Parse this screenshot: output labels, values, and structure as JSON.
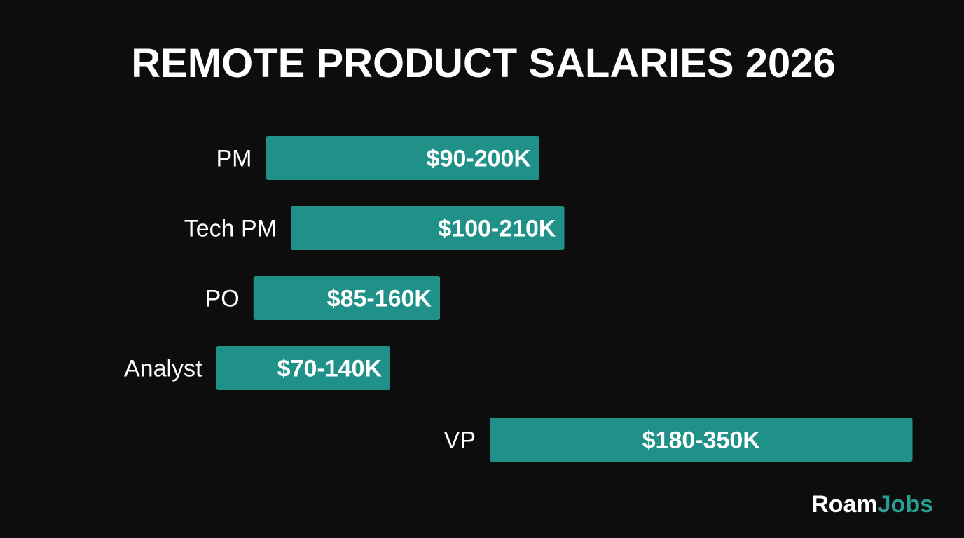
{
  "chart_data": {
    "type": "bar",
    "orientation": "horizontal",
    "title": "REMOTE PRODUCT SALARIES 2026",
    "categories": [
      "PM",
      "Tech PM",
      "PO",
      "Analyst",
      "VP"
    ],
    "ranges": [
      [
        90,
        200
      ],
      [
        100,
        210
      ],
      [
        85,
        160
      ],
      [
        70,
        140
      ],
      [
        180,
        350
      ]
    ],
    "labels": [
      "$90-200K",
      "$100-210K",
      "$85-160K",
      "$70-140K",
      "$180-350K"
    ],
    "unit": "K USD",
    "grid": false,
    "bar_color": "#1f9189"
  },
  "brand": {
    "part1": "Roam",
    "part2": "Jobs",
    "accent": "#2a9d93"
  }
}
